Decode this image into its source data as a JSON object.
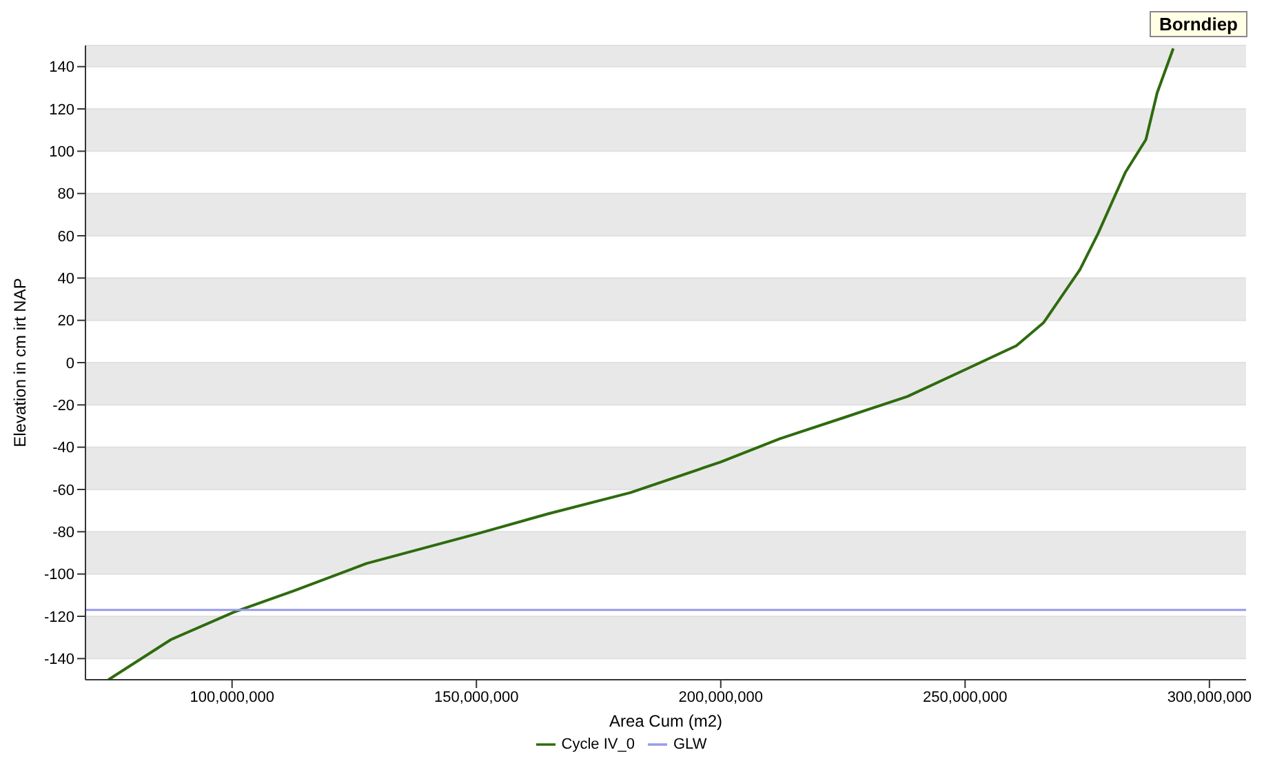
{
  "chart_data": {
    "type": "line",
    "title": "Borndiep",
    "xlabel": "Area Cum (m2)",
    "ylabel": "Elevation in cm irt NAP",
    "xlim": [
      70000000,
      307500000
    ],
    "xticks": [
      {
        "value": 100000000,
        "label": "100,000,000"
      },
      {
        "value": 150000000,
        "label": "150,000,000"
      },
      {
        "value": 200000000,
        "label": "200,000,000"
      },
      {
        "value": 250000000,
        "label": "250,000,000"
      },
      {
        "value": 300000000,
        "label": "300,000,000"
      }
    ],
    "ylim": [
      -150,
      150
    ],
    "yticks": [
      -140,
      -120,
      -100,
      -80,
      -60,
      -40,
      -20,
      0,
      20,
      40,
      60,
      80,
      100,
      120,
      140
    ],
    "grid": "y",
    "legend": "bottom",
    "marker": "none",
    "line_style": "solid",
    "series": [
      {
        "name": "Cycle IV_0",
        "color": "#2e6b0e",
        "x": [
          74700000,
          87500000,
          100400000,
          112600000,
          127500000,
          150100000,
          164700000,
          181500000,
          200000000,
          212100000,
          225200000,
          238200000,
          250300000,
          260500000,
          266100000,
          273500000,
          277200000,
          282800000,
          287000000,
          289300000,
          292600000
        ],
        "values": [
          -150,
          -131,
          -118,
          -108,
          -95,
          -81,
          -71.5,
          -61.5,
          -47,
          -36,
          -26,
          -16,
          -3,
          8,
          19,
          44,
          61,
          90,
          105.5,
          127.6,
          148.6
        ]
      },
      {
        "name": "GLW",
        "color": "#9999ee",
        "x": [
          70000000,
          307500000
        ],
        "values": [
          -117,
          -117
        ]
      }
    ]
  }
}
